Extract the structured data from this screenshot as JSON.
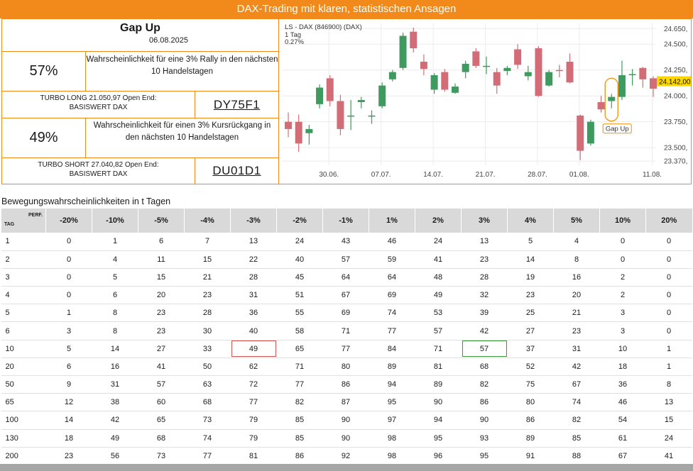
{
  "banner": "DAX-Trading mit klaren, statistischen Ansagen",
  "signal": {
    "title": "Gap Up",
    "date": "06.08.2025",
    "rally_pct": "57%",
    "rally_text": "Wahrscheinlichkeit für eine 3% Rally in den nächsten 10 Handelstagen",
    "turbo_long": "TURBO LONG 21.050,97 Open End:\nBASISWERT DAX",
    "wkn_long": "DY75F1",
    "drop_pct": "49%",
    "drop_text": "Wahrscheinlichkeit für einen 3% Kursrückgang in den nächsten 10 Handelstagen",
    "turbo_short": "TURBO SHORT 27.040,82 Open End:\nBASISWERT DAX",
    "wkn_short": "DU01D1"
  },
  "chart_data": {
    "type": "candlestick",
    "title": "LS - DAX (846900) (DAX)",
    "subtitle": "1 Tag",
    "change": "0.27%",
    "ylim": [
      23330,
      24700
    ],
    "y_ticks": [
      "24.650,",
      "24.500,",
      "24.250,",
      "24.000,",
      "23.750,",
      "23.500,",
      "23.370,"
    ],
    "y_tick_values": [
      24650,
      24500,
      24250,
      24000,
      23750,
      23500,
      23370
    ],
    "x_tick_labels": [
      "30.06.",
      "07.07.",
      "14.07.",
      "21.07.",
      "28.07.",
      "01.08.",
      "11.08."
    ],
    "x_tick_index": [
      3.9,
      8.9,
      13.9,
      18.9,
      23.9,
      27.9,
      34.9
    ],
    "last_price_label": "24.142,00",
    "last_price": 24142,
    "annotation": "Gap Up",
    "annotation_index": 31,
    "colors": {
      "up": "#3f9a5f",
      "down": "#d26d77",
      "annotation": "#f0a020",
      "price_tag": "#ffd700"
    },
    "candles": [
      {
        "o": 23750,
        "h": 23840,
        "l": 23600,
        "c": 23680
      },
      {
        "o": 23750,
        "h": 23820,
        "l": 23460,
        "c": 23540
      },
      {
        "o": 23640,
        "h": 23720,
        "l": 23530,
        "c": 23680
      },
      {
        "o": 23920,
        "h": 24110,
        "l": 23880,
        "c": 24080
      },
      {
        "o": 24170,
        "h": 24200,
        "l": 23900,
        "c": 23950
      },
      {
        "o": 23950,
        "h": 24010,
        "l": 23620,
        "c": 23680
      },
      {
        "o": 23800,
        "h": 23960,
        "l": 23670,
        "c": 23810
      },
      {
        "o": 23940,
        "h": 23990,
        "l": 23880,
        "c": 23960
      },
      {
        "o": 23810,
        "h": 23860,
        "l": 23730,
        "c": 23810
      },
      {
        "o": 23900,
        "h": 24130,
        "l": 23880,
        "c": 24100
      },
      {
        "o": 24160,
        "h": 24250,
        "l": 24140,
        "c": 24230
      },
      {
        "o": 24270,
        "h": 24610,
        "l": 24250,
        "c": 24580
      },
      {
        "o": 24620,
        "h": 24660,
        "l": 24420,
        "c": 24460
      },
      {
        "o": 24330,
        "h": 24400,
        "l": 24200,
        "c": 24260
      },
      {
        "o": 24060,
        "h": 24220,
        "l": 24020,
        "c": 24200
      },
      {
        "o": 24230,
        "h": 24260,
        "l": 24040,
        "c": 24060
      },
      {
        "o": 24030,
        "h": 24120,
        "l": 24020,
        "c": 24090
      },
      {
        "o": 24230,
        "h": 24340,
        "l": 24170,
        "c": 24310
      },
      {
        "o": 24430,
        "h": 24460,
        "l": 24270,
        "c": 24290
      },
      {
        "o": 24280,
        "h": 24380,
        "l": 24210,
        "c": 24290
      },
      {
        "o": 24230,
        "h": 24270,
        "l": 24020,
        "c": 24100
      },
      {
        "o": 24240,
        "h": 24290,
        "l": 24200,
        "c": 24270
      },
      {
        "o": 24450,
        "h": 24500,
        "l": 24260,
        "c": 24300
      },
      {
        "o": 24190,
        "h": 24290,
        "l": 24150,
        "c": 24230
      },
      {
        "o": 24460,
        "h": 24480,
        "l": 23990,
        "c": 24000
      },
      {
        "o": 24100,
        "h": 24250,
        "l": 24090,
        "c": 24230
      },
      {
        "o": 24250,
        "h": 24300,
        "l": 24180,
        "c": 24240
      },
      {
        "o": 24330,
        "h": 24410,
        "l": 24120,
        "c": 24130
      },
      {
        "o": 23810,
        "h": 23820,
        "l": 23380,
        "c": 23470
      },
      {
        "o": 23540,
        "h": 23770,
        "l": 23520,
        "c": 23750
      },
      {
        "o": 23940,
        "h": 24000,
        "l": 23840,
        "c": 23870
      },
      {
        "o": 23950,
        "h": 24020,
        "l": 23880,
        "c": 23990
      },
      {
        "o": 23990,
        "h": 24340,
        "l": 23960,
        "c": 24200
      },
      {
        "o": 24210,
        "h": 24260,
        "l": 24100,
        "c": 24210
      },
      {
        "o": 24270,
        "h": 24280,
        "l": 24080,
        "c": 24160
      },
      {
        "o": 24170,
        "h": 24190,
        "l": 23990,
        "c": 24070
      }
    ]
  },
  "table": {
    "title": "Bewegungswahrscheinlichkeiten in t Tagen",
    "corner_tag": "TAG",
    "corner_perf": "PERF.",
    "headers": [
      "-20%",
      "-10%",
      "-5%",
      "-4%",
      "-3%",
      "-2%",
      "-1%",
      "1%",
      "2%",
      "3%",
      "4%",
      "5%",
      "10%",
      "20%"
    ],
    "rows": [
      {
        "tag": "1",
        "values": [
          "0",
          "1",
          "6",
          "7",
          "13",
          "24",
          "43",
          "46",
          "24",
          "13",
          "5",
          "4",
          "0",
          "0"
        ]
      },
      {
        "tag": "2",
        "values": [
          "0",
          "4",
          "11",
          "15",
          "22",
          "40",
          "57",
          "59",
          "41",
          "23",
          "14",
          "8",
          "0",
          "0"
        ]
      },
      {
        "tag": "3",
        "values": [
          "0",
          "5",
          "15",
          "21",
          "28",
          "45",
          "64",
          "64",
          "48",
          "28",
          "19",
          "16",
          "2",
          "0"
        ]
      },
      {
        "tag": "4",
        "values": [
          "0",
          "6",
          "20",
          "23",
          "31",
          "51",
          "67",
          "69",
          "49",
          "32",
          "23",
          "20",
          "2",
          "0"
        ]
      },
      {
        "tag": "5",
        "values": [
          "1",
          "8",
          "23",
          "28",
          "36",
          "55",
          "69",
          "74",
          "53",
          "39",
          "25",
          "21",
          "3",
          "0"
        ]
      },
      {
        "tag": "6",
        "values": [
          "3",
          "8",
          "23",
          "30",
          "40",
          "58",
          "71",
          "77",
          "57",
          "42",
          "27",
          "23",
          "3",
          "0"
        ]
      },
      {
        "tag": "10",
        "values": [
          "5",
          "14",
          "27",
          "33",
          "49",
          "65",
          "77",
          "84",
          "71",
          "57",
          "37",
          "31",
          "10",
          "1"
        ]
      },
      {
        "tag": "20",
        "values": [
          "6",
          "16",
          "41",
          "50",
          "62",
          "71",
          "80",
          "89",
          "81",
          "68",
          "52",
          "42",
          "18",
          "1"
        ]
      },
      {
        "tag": "50",
        "values": [
          "9",
          "31",
          "57",
          "63",
          "72",
          "77",
          "86",
          "94",
          "89",
          "82",
          "75",
          "67",
          "36",
          "8"
        ]
      },
      {
        "tag": "65",
        "values": [
          "12",
          "38",
          "60",
          "68",
          "77",
          "82",
          "87",
          "95",
          "90",
          "86",
          "80",
          "74",
          "46",
          "13"
        ]
      },
      {
        "tag": "100",
        "values": [
          "14",
          "42",
          "65",
          "73",
          "79",
          "85",
          "90",
          "97",
          "94",
          "90",
          "86",
          "82",
          "54",
          "15"
        ]
      },
      {
        "tag": "130",
        "values": [
          "18",
          "49",
          "68",
          "74",
          "79",
          "85",
          "90",
          "98",
          "95",
          "93",
          "89",
          "85",
          "61",
          "24"
        ]
      },
      {
        "tag": "200",
        "values": [
          "23",
          "56",
          "73",
          "77",
          "81",
          "86",
          "92",
          "98",
          "96",
          "95",
          "91",
          "88",
          "67",
          "41"
        ]
      }
    ],
    "highlight_red": {
      "row": 6,
      "col": 4
    },
    "highlight_green": {
      "row": 6,
      "col": 9
    }
  }
}
